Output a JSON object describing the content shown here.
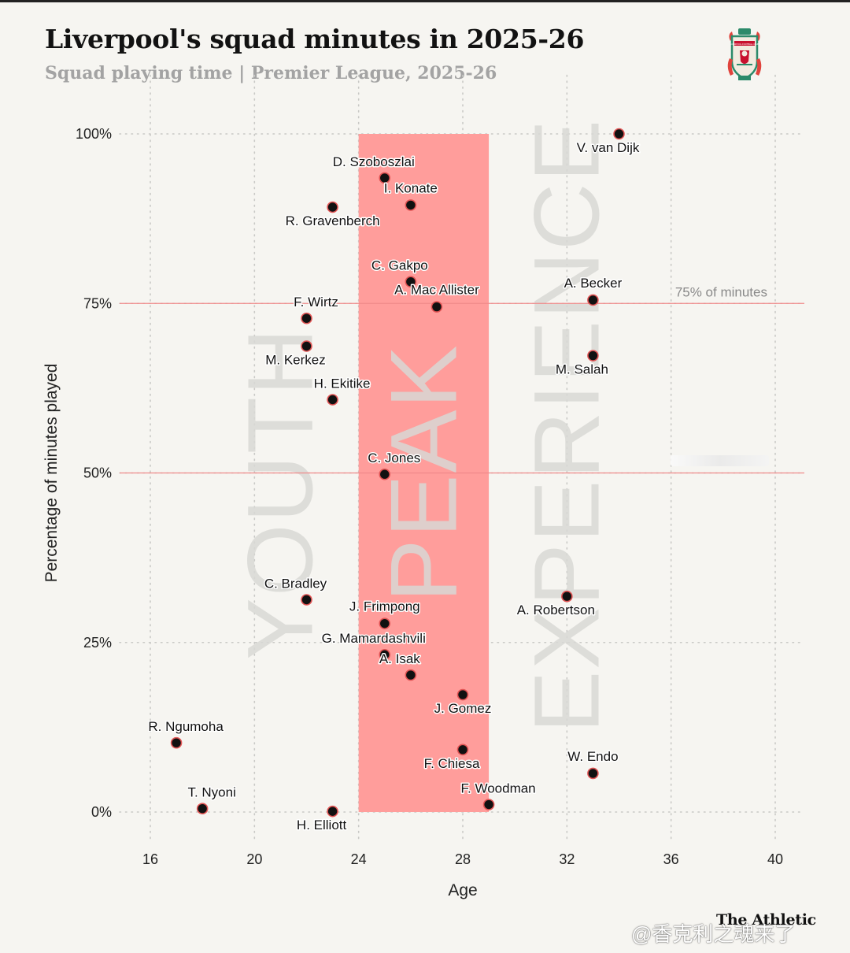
{
  "header": {
    "title": "Liverpool's squad minutes in 2025-26",
    "subtitle": "Squad playing time | Premier League, 2025-26",
    "crest_icon": "liverpool-fc-crest-icon",
    "crest_text": "LIVERPOOL FOOTBALL CLUB"
  },
  "footer": {
    "brand": "The Athletic",
    "watermark": "@香克利之魂来了"
  },
  "colors": {
    "peak_band": "#ff9d9b",
    "reference_line": "#f08a8a",
    "point_fill": "#111111",
    "point_stroke": "#e25555",
    "zone_text": "#d8d8d5",
    "grid": "#c9c9c6"
  },
  "chart_data": {
    "type": "scatter",
    "title": "Liverpool's squad minutes in 2025-26",
    "subtitle": "Squad playing time | Premier League, 2025-26",
    "xlabel": "Age",
    "ylabel": "Percentage of minutes played",
    "xlim": [
      15,
      41
    ],
    "ylim": [
      -4,
      104
    ],
    "xticks": [
      16,
      20,
      24,
      28,
      32,
      36,
      40
    ],
    "yticks": [
      0,
      25,
      50,
      75,
      100
    ],
    "ytick_labels": [
      "0%",
      "25%",
      "50%",
      "75%",
      "100%"
    ],
    "grid": true,
    "shaded_regions": [
      {
        "name": "PEAK",
        "x_from": 24,
        "x_to": 29,
        "y_from": 0,
        "y_to": 100
      }
    ],
    "zone_labels": [
      {
        "text": "YOUTH",
        "x": 21,
        "y": 47
      },
      {
        "text": "PEAK",
        "x": 26.5,
        "y": 50
      },
      {
        "text": "EXPERIENCE",
        "x": 32,
        "y": 57
      }
    ],
    "reference_lines": [
      {
        "y": 75,
        "label": "75% of minutes"
      },
      {
        "y": 50,
        "label": ""
      }
    ],
    "points": [
      {
        "name": "V. van Dijk",
        "age": 34,
        "pct": 100,
        "label_pos": "below-left"
      },
      {
        "name": "D. Szoboszlai",
        "age": 25,
        "pct": 93.5,
        "label_pos": "above-left"
      },
      {
        "name": "I. Konate",
        "age": 26,
        "pct": 89.5,
        "label_pos": "above"
      },
      {
        "name": "R. Gravenberch",
        "age": 23,
        "pct": 89.2,
        "label_pos": "below"
      },
      {
        "name": "C. Gakpo",
        "age": 26,
        "pct": 78.2,
        "label_pos": "above-left"
      },
      {
        "name": "A. Becker",
        "age": 33,
        "pct": 75.5,
        "label_pos": "above"
      },
      {
        "name": "A. Mac Allister",
        "age": 27,
        "pct": 74.5,
        "label_pos": "above"
      },
      {
        "name": "F. Wirtz",
        "age": 22,
        "pct": 72.8,
        "label_pos": "above-right"
      },
      {
        "name": "M. Kerkez",
        "age": 22,
        "pct": 68.7,
        "label_pos": "below-left"
      },
      {
        "name": "M. Salah",
        "age": 33,
        "pct": 67.3,
        "label_pos": "below-left"
      },
      {
        "name": "H. Ekitike",
        "age": 23,
        "pct": 60.8,
        "label_pos": "above-right"
      },
      {
        "name": "C. Jones",
        "age": 25,
        "pct": 49.8,
        "label_pos": "above-right"
      },
      {
        "name": "C. Bradley",
        "age": 22,
        "pct": 31.3,
        "label_pos": "above-left"
      },
      {
        "name": "A. Robertson",
        "age": 32,
        "pct": 31.8,
        "label_pos": "below-left"
      },
      {
        "name": "J. Frimpong",
        "age": 25,
        "pct": 27.8,
        "label_pos": "above"
      },
      {
        "name": "G. Mamardashvili",
        "age": 25,
        "pct": 23.2,
        "label_pos": "above-left"
      },
      {
        "name": "A. Isak",
        "age": 26,
        "pct": 20.2,
        "label_pos": "above-left"
      },
      {
        "name": "J. Gomez",
        "age": 28,
        "pct": 17.3,
        "label_pos": "below"
      },
      {
        "name": "R. Ngumoha",
        "age": 17,
        "pct": 10.2,
        "label_pos": "above-right"
      },
      {
        "name": "F. Chiesa",
        "age": 28,
        "pct": 9.2,
        "label_pos": "below-left"
      },
      {
        "name": "W. Endo",
        "age": 33,
        "pct": 5.7,
        "label_pos": "above"
      },
      {
        "name": "F. Woodman",
        "age": 29,
        "pct": 1.1,
        "label_pos": "above-right"
      },
      {
        "name": "T. Nyoni",
        "age": 18,
        "pct": 0.5,
        "label_pos": "above-right"
      },
      {
        "name": "H. Elliott",
        "age": 23,
        "pct": 0.1,
        "label_pos": "below-left"
      }
    ]
  }
}
